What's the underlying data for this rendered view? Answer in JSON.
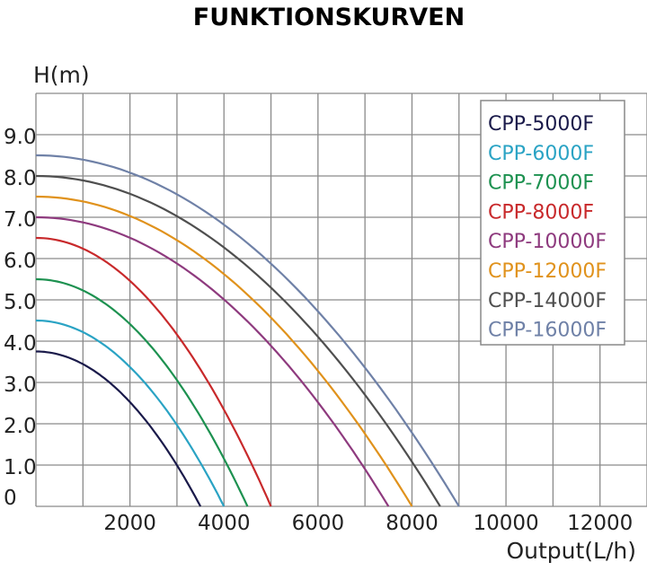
{
  "chart_data": {
    "type": "line",
    "title": "FUNKTIONSKURVEN",
    "ylabel": "H(m)",
    "xlabel": "Output(L/h)",
    "xlim": [
      0,
      13000
    ],
    "ylim": [
      0,
      10
    ],
    "grid": true,
    "legend_position": "top-right",
    "x_ticks": [
      {
        "value": 2000,
        "label": "2000"
      },
      {
        "value": 4000,
        "label": "4000"
      },
      {
        "value": 6000,
        "label": "6000"
      },
      {
        "value": 8000,
        "label": "8000"
      },
      {
        "value": 10000,
        "label": "10000"
      },
      {
        "value": 12000,
        "label": "12000"
      }
    ],
    "y_ticks": [
      {
        "value": 0,
        "label": "0"
      },
      {
        "value": 1,
        "label": "1.0"
      },
      {
        "value": 2,
        "label": "2.0"
      },
      {
        "value": 3,
        "label": "3.0"
      },
      {
        "value": 4,
        "label": "4.0"
      },
      {
        "value": 5,
        "label": "5.0"
      },
      {
        "value": 6,
        "label": "6.0"
      },
      {
        "value": 7,
        "label": "7.0"
      },
      {
        "value": 8,
        "label": "8.0"
      },
      {
        "value": 9,
        "label": "9.0"
      }
    ],
    "series": [
      {
        "name": "CPP-5000F",
        "color": "#1a1a4a",
        "hmax": 3.75,
        "qmax": 3500
      },
      {
        "name": "CPP-6000F",
        "color": "#2aa3c4",
        "hmax": 4.5,
        "qmax": 4000
      },
      {
        "name": "CPP-7000F",
        "color": "#1d9150",
        "hmax": 5.5,
        "qmax": 4500
      },
      {
        "name": "CPP-8000F",
        "color": "#c8292b",
        "hmax": 6.5,
        "qmax": 5000
      },
      {
        "name": "CPP-10000F",
        "color": "#8e3a7e",
        "hmax": 7.0,
        "qmax": 7500
      },
      {
        "name": "CPP-12000F",
        "color": "#e0921c",
        "hmax": 7.5,
        "qmax": 8000
      },
      {
        "name": "CPP-14000F",
        "color": "#4f4f4f",
        "hmax": 8.0,
        "qmax": 8600
      },
      {
        "name": "CPP-16000F",
        "color": "#6f81a7",
        "hmax": 8.5,
        "qmax": 9000
      }
    ]
  }
}
